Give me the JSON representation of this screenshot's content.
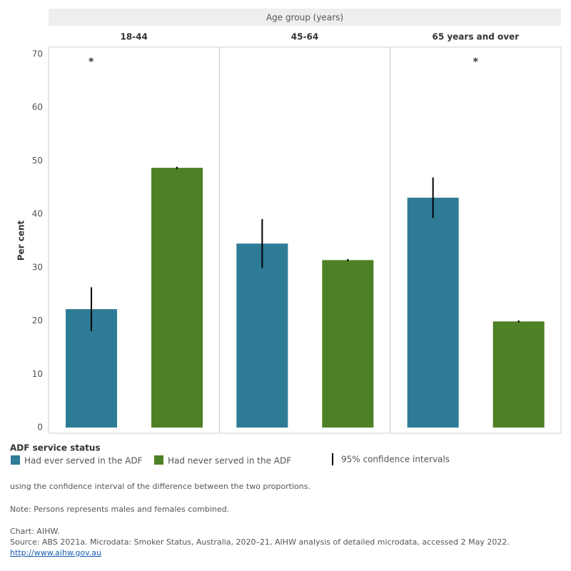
{
  "chart_data": {
    "type": "bar",
    "facet_title": "Age group (years)",
    "categories": [
      "18-44",
      "45-64",
      "65 years and over"
    ],
    "significance_markers": [
      "*",
      null,
      "*"
    ],
    "y_label": "Per cent",
    "ylim": [
      0,
      70
    ],
    "yticks": [
      0,
      10,
      20,
      30,
      40,
      50,
      60,
      70
    ],
    "legend_title": "ADF service status",
    "ci_label": "95% confidence intervals",
    "series": [
      {
        "name": "Had ever served in the ADF",
        "color": "#2e7b96",
        "values": [
          22.2,
          34.5,
          43.1
        ],
        "errors": [
          4.1,
          4.6,
          3.8
        ]
      },
      {
        "name": "Had never served in the ADF",
        "color": "#4e8126",
        "values": [
          48.7,
          31.4,
          19.9
        ],
        "errors": [
          0.2,
          0.2,
          0.2
        ]
      }
    ],
    "notes": [
      "using the confidence interval of the difference between the two proportions.",
      "Note: Persons represents males and females combined."
    ],
    "credit": "Chart: AIHW.",
    "source": "Source: ABS 2021a. Microdata: Smoker Status, Australia, 2020–21, AIHW analysis of detailed microdata, accessed 2 May 2022.",
    "link": "http://www.aihw.gov.au"
  }
}
